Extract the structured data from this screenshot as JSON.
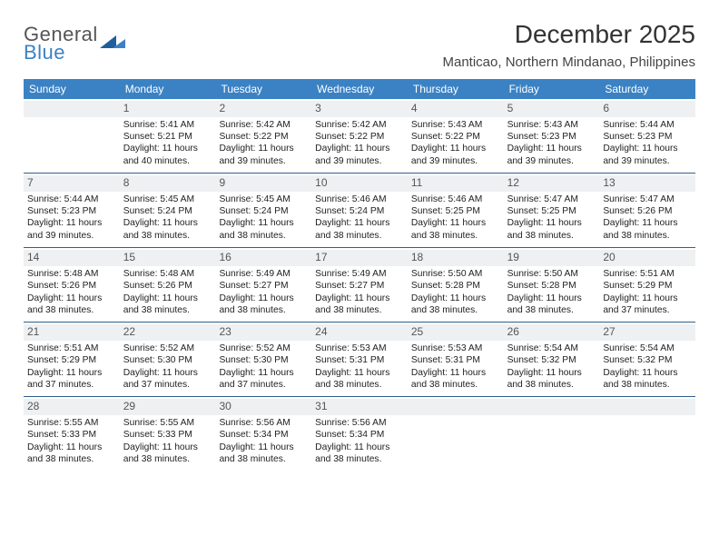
{
  "brand": {
    "line1": "General",
    "line2": "Blue"
  },
  "title": "December 2025",
  "location": "Manticao, Northern Mindanao, Philippines",
  "colors": {
    "header_bg": "#3b82c4",
    "header_text": "#ffffff",
    "daynum_bg": "#eef0f2",
    "rule": "#2e5f8a",
    "body_text": "#222222"
  },
  "fonts": {
    "title_pt": 28,
    "location_pt": 15,
    "weekday_pt": 12,
    "daynum_pt": 12,
    "body_pt": 10.3
  },
  "weekdays": [
    "Sunday",
    "Monday",
    "Tuesday",
    "Wednesday",
    "Thursday",
    "Friday",
    "Saturday"
  ],
  "weeks": [
    [
      {
        "n": "",
        "lines": []
      },
      {
        "n": "1",
        "lines": [
          "Sunrise: 5:41 AM",
          "Sunset: 5:21 PM",
          "Daylight: 11 hours and 40 minutes."
        ]
      },
      {
        "n": "2",
        "lines": [
          "Sunrise: 5:42 AM",
          "Sunset: 5:22 PM",
          "Daylight: 11 hours and 39 minutes."
        ]
      },
      {
        "n": "3",
        "lines": [
          "Sunrise: 5:42 AM",
          "Sunset: 5:22 PM",
          "Daylight: 11 hours and 39 minutes."
        ]
      },
      {
        "n": "4",
        "lines": [
          "Sunrise: 5:43 AM",
          "Sunset: 5:22 PM",
          "Daylight: 11 hours and 39 minutes."
        ]
      },
      {
        "n": "5",
        "lines": [
          "Sunrise: 5:43 AM",
          "Sunset: 5:23 PM",
          "Daylight: 11 hours and 39 minutes."
        ]
      },
      {
        "n": "6",
        "lines": [
          "Sunrise: 5:44 AM",
          "Sunset: 5:23 PM",
          "Daylight: 11 hours and 39 minutes."
        ]
      }
    ],
    [
      {
        "n": "7",
        "lines": [
          "Sunrise: 5:44 AM",
          "Sunset: 5:23 PM",
          "Daylight: 11 hours and 39 minutes."
        ]
      },
      {
        "n": "8",
        "lines": [
          "Sunrise: 5:45 AM",
          "Sunset: 5:24 PM",
          "Daylight: 11 hours and 38 minutes."
        ]
      },
      {
        "n": "9",
        "lines": [
          "Sunrise: 5:45 AM",
          "Sunset: 5:24 PM",
          "Daylight: 11 hours and 38 minutes."
        ]
      },
      {
        "n": "10",
        "lines": [
          "Sunrise: 5:46 AM",
          "Sunset: 5:24 PM",
          "Daylight: 11 hours and 38 minutes."
        ]
      },
      {
        "n": "11",
        "lines": [
          "Sunrise: 5:46 AM",
          "Sunset: 5:25 PM",
          "Daylight: 11 hours and 38 minutes."
        ]
      },
      {
        "n": "12",
        "lines": [
          "Sunrise: 5:47 AM",
          "Sunset: 5:25 PM",
          "Daylight: 11 hours and 38 minutes."
        ]
      },
      {
        "n": "13",
        "lines": [
          "Sunrise: 5:47 AM",
          "Sunset: 5:26 PM",
          "Daylight: 11 hours and 38 minutes."
        ]
      }
    ],
    [
      {
        "n": "14",
        "lines": [
          "Sunrise: 5:48 AM",
          "Sunset: 5:26 PM",
          "Daylight: 11 hours and 38 minutes."
        ]
      },
      {
        "n": "15",
        "lines": [
          "Sunrise: 5:48 AM",
          "Sunset: 5:26 PM",
          "Daylight: 11 hours and 38 minutes."
        ]
      },
      {
        "n": "16",
        "lines": [
          "Sunrise: 5:49 AM",
          "Sunset: 5:27 PM",
          "Daylight: 11 hours and 38 minutes."
        ]
      },
      {
        "n": "17",
        "lines": [
          "Sunrise: 5:49 AM",
          "Sunset: 5:27 PM",
          "Daylight: 11 hours and 38 minutes."
        ]
      },
      {
        "n": "18",
        "lines": [
          "Sunrise: 5:50 AM",
          "Sunset: 5:28 PM",
          "Daylight: 11 hours and 38 minutes."
        ]
      },
      {
        "n": "19",
        "lines": [
          "Sunrise: 5:50 AM",
          "Sunset: 5:28 PM",
          "Daylight: 11 hours and 38 minutes."
        ]
      },
      {
        "n": "20",
        "lines": [
          "Sunrise: 5:51 AM",
          "Sunset: 5:29 PM",
          "Daylight: 11 hours and 37 minutes."
        ]
      }
    ],
    [
      {
        "n": "21",
        "lines": [
          "Sunrise: 5:51 AM",
          "Sunset: 5:29 PM",
          "Daylight: 11 hours and 37 minutes."
        ]
      },
      {
        "n": "22",
        "lines": [
          "Sunrise: 5:52 AM",
          "Sunset: 5:30 PM",
          "Daylight: 11 hours and 37 minutes."
        ]
      },
      {
        "n": "23",
        "lines": [
          "Sunrise: 5:52 AM",
          "Sunset: 5:30 PM",
          "Daylight: 11 hours and 37 minutes."
        ]
      },
      {
        "n": "24",
        "lines": [
          "Sunrise: 5:53 AM",
          "Sunset: 5:31 PM",
          "Daylight: 11 hours and 38 minutes."
        ]
      },
      {
        "n": "25",
        "lines": [
          "Sunrise: 5:53 AM",
          "Sunset: 5:31 PM",
          "Daylight: 11 hours and 38 minutes."
        ]
      },
      {
        "n": "26",
        "lines": [
          "Sunrise: 5:54 AM",
          "Sunset: 5:32 PM",
          "Daylight: 11 hours and 38 minutes."
        ]
      },
      {
        "n": "27",
        "lines": [
          "Sunrise: 5:54 AM",
          "Sunset: 5:32 PM",
          "Daylight: 11 hours and 38 minutes."
        ]
      }
    ],
    [
      {
        "n": "28",
        "lines": [
          "Sunrise: 5:55 AM",
          "Sunset: 5:33 PM",
          "Daylight: 11 hours and 38 minutes."
        ]
      },
      {
        "n": "29",
        "lines": [
          "Sunrise: 5:55 AM",
          "Sunset: 5:33 PM",
          "Daylight: 11 hours and 38 minutes."
        ]
      },
      {
        "n": "30",
        "lines": [
          "Sunrise: 5:56 AM",
          "Sunset: 5:34 PM",
          "Daylight: 11 hours and 38 minutes."
        ]
      },
      {
        "n": "31",
        "lines": [
          "Sunrise: 5:56 AM",
          "Sunset: 5:34 PM",
          "Daylight: 11 hours and 38 minutes."
        ]
      },
      {
        "n": "",
        "lines": []
      },
      {
        "n": "",
        "lines": []
      },
      {
        "n": "",
        "lines": []
      }
    ]
  ]
}
